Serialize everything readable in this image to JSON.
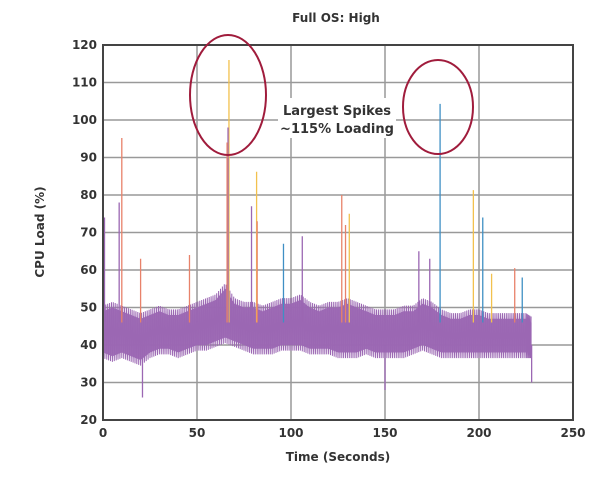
{
  "chart_data": {
    "type": "line",
    "title": "Full OS: High",
    "xlabel": "Time (Seconds)",
    "ylabel": "CPU Load (%)",
    "xlim": [
      0,
      250
    ],
    "ylim": [
      20,
      120
    ],
    "x_ticks": [
      0,
      50,
      100,
      150,
      200,
      250
    ],
    "y_ticks": [
      20,
      30,
      40,
      50,
      60,
      70,
      80,
      90,
      100,
      110,
      120
    ],
    "grid": true,
    "annotation": {
      "line1": "Largest Spikes",
      "line2": "~115% Loading"
    },
    "colors": {
      "purple": "#9b67b3",
      "blue": "#3f8fc4",
      "orange": "#e8826a",
      "yellow": "#f2c14e",
      "annotation": "#a01c3c"
    },
    "band_series": {
      "color": "purple",
      "points": [
        [
          0,
          38,
          49
        ],
        [
          5,
          37,
          50
        ],
        [
          10,
          38,
          49
        ],
        [
          15,
          37,
          48
        ],
        [
          20,
          36,
          47
        ],
        [
          25,
          38,
          48
        ],
        [
          30,
          39,
          49
        ],
        [
          35,
          39,
          48
        ],
        [
          40,
          38,
          48
        ],
        [
          45,
          39,
          49
        ],
        [
          50,
          40,
          50
        ],
        [
          55,
          40,
          51
        ],
        [
          60,
          41,
          52
        ],
        [
          65,
          42,
          55
        ],
        [
          70,
          41,
          51
        ],
        [
          75,
          40,
          50
        ],
        [
          80,
          39,
          50
        ],
        [
          85,
          39,
          49
        ],
        [
          90,
          39,
          50
        ],
        [
          95,
          40,
          51
        ],
        [
          100,
          40,
          51
        ],
        [
          105,
          40,
          52
        ],
        [
          110,
          39,
          50
        ],
        [
          115,
          39,
          49
        ],
        [
          120,
          39,
          50
        ],
        [
          125,
          38,
          50
        ],
        [
          130,
          38,
          51
        ],
        [
          135,
          38,
          50
        ],
        [
          140,
          39,
          49
        ],
        [
          145,
          38,
          48
        ],
        [
          150,
          38,
          48
        ],
        [
          155,
          38,
          48
        ],
        [
          160,
          38,
          49
        ],
        [
          165,
          39,
          49
        ],
        [
          170,
          40,
          51
        ],
        [
          175,
          39,
          50
        ],
        [
          180,
          38,
          48
        ],
        [
          185,
          38,
          47
        ],
        [
          190,
          38,
          47
        ],
        [
          195,
          38,
          48
        ],
        [
          200,
          38,
          48
        ],
        [
          205,
          38,
          47
        ],
        [
          210,
          38,
          47
        ],
        [
          215,
          38,
          47
        ],
        [
          220,
          38,
          47
        ],
        [
          225,
          38,
          47
        ],
        [
          228,
          38,
          46
        ]
      ]
    },
    "spikes": [
      {
        "color": "yellow",
        "x": 67,
        "y": 116
      },
      {
        "color": "blue",
        "x": 179.3,
        "y": 104.3
      },
      {
        "color": "orange",
        "x": 10,
        "y": 95.2
      },
      {
        "color": "purple",
        "x": 66.5,
        "y": 98
      },
      {
        "color": "orange",
        "x": 66,
        "y": 94
      },
      {
        "color": "yellow",
        "x": 81.7,
        "y": 86.2
      },
      {
        "color": "orange",
        "x": 127,
        "y": 80
      },
      {
        "color": "blue",
        "x": 202,
        "y": 74
      },
      {
        "color": "yellow",
        "x": 197,
        "y": 81.3
      },
      {
        "color": "purple",
        "x": 79,
        "y": 77
      },
      {
        "color": "orange",
        "x": 82,
        "y": 73
      },
      {
        "color": "purple",
        "x": 8.6,
        "y": 78
      },
      {
        "color": "purple",
        "x": 0.8,
        "y": 74
      },
      {
        "color": "orange",
        "x": 219,
        "y": 60.5
      },
      {
        "color": "orange",
        "x": 46,
        "y": 64
      },
      {
        "color": "blue",
        "x": 96,
        "y": 67
      },
      {
        "color": "yellow",
        "x": 131,
        "y": 75
      },
      {
        "color": "orange",
        "x": 129,
        "y": 72
      },
      {
        "color": "purple",
        "x": 173.8,
        "y": 63
      },
      {
        "color": "purple",
        "x": 168,
        "y": 65
      },
      {
        "color": "blue",
        "x": 223,
        "y": 58
      },
      {
        "color": "yellow",
        "x": 206.7,
        "y": 59
      },
      {
        "color": "purple",
        "x": 106,
        "y": 69
      },
      {
        "color": "orange",
        "x": 20,
        "y": 63
      },
      {
        "color": "purple",
        "x": 21,
        "y": 26
      },
      {
        "color": "purple",
        "x": 150,
        "y": 28
      },
      {
        "color": "purple",
        "x": 228,
        "y": 30
      }
    ]
  }
}
